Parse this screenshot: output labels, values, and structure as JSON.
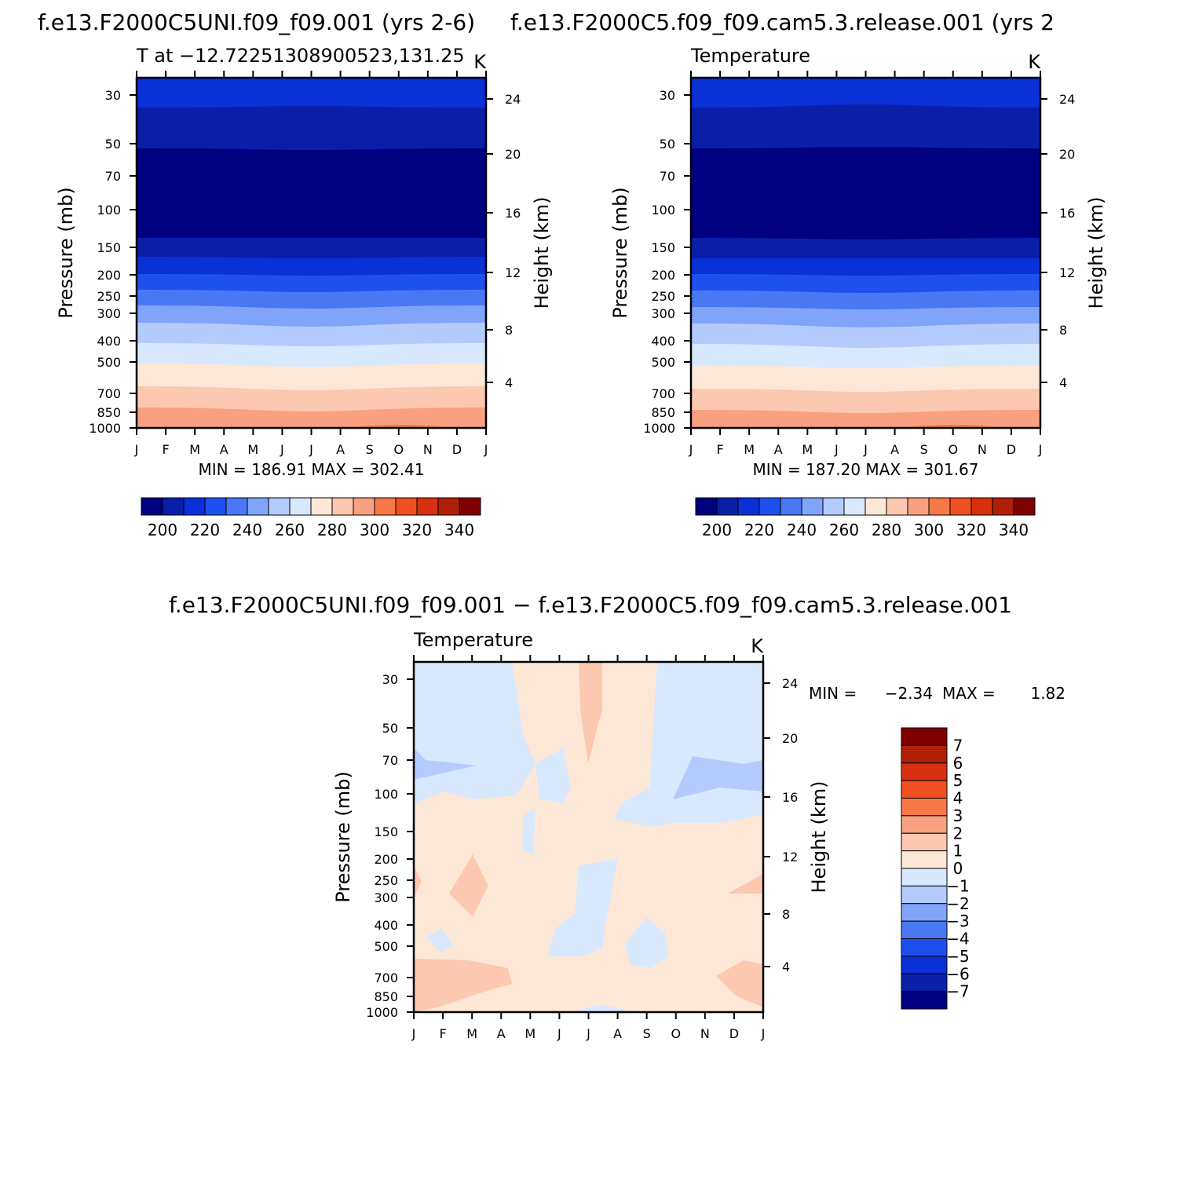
{
  "chart_data": [
    {
      "type": "heatmap",
      "title": "f.e13.F2000C5UNI.f09_f09.001 (yrs 2-6)",
      "subtitle_left": "T at −12.72251308900523,131.25",
      "subtitle_right": "K",
      "xlabel": "",
      "ylabel": "Pressure (mb)",
      "ylabel_right": "Height (km)",
      "x_ticks": [
        "J",
        "F",
        "M",
        "A",
        "M",
        "J",
        "J",
        "A",
        "S",
        "O",
        "N",
        "D",
        "J"
      ],
      "pressure_ticks": [
        "30",
        "50",
        "70",
        "100",
        "150",
        "200",
        "250",
        "300",
        "400",
        "500",
        "700",
        "850",
        "1000"
      ],
      "height_ticks": [
        "24",
        "20",
        "16",
        "12",
        "8",
        "4"
      ],
      "stats": "MIN = 186.91 MAX = 302.41",
      "colorbar_labels": [
        "200",
        "220",
        "240",
        "260",
        "280",
        "300",
        "320",
        "340"
      ],
      "colors": [
        "#000080",
        "#0a1fa8",
        "#0a30d8",
        "#1e50f0",
        "#4a78f5",
        "#80a4fa",
        "#b3cbfd",
        "#d8e8fd",
        "#fde8d8",
        "#fcc8b0",
        "#f8a080",
        "#f87848",
        "#f05020",
        "#d83010",
        "#b02008",
        "#800000"
      ]
    },
    {
      "type": "heatmap",
      "title": "f.e13.F2000C5.f09_f09.cam5.3.release.001 (yrs 2",
      "subtitle_left": "Temperature",
      "subtitle_right": "K",
      "xlabel": "",
      "ylabel": "Pressure (mb)",
      "ylabel_right": "Height (km)",
      "x_ticks": [
        "J",
        "F",
        "M",
        "A",
        "M",
        "J",
        "J",
        "A",
        "S",
        "O",
        "N",
        "D",
        "J"
      ],
      "pressure_ticks": [
        "30",
        "50",
        "70",
        "100",
        "150",
        "200",
        "250",
        "300",
        "400",
        "500",
        "700",
        "850",
        "1000"
      ],
      "height_ticks": [
        "24",
        "20",
        "16",
        "12",
        "8",
        "4"
      ],
      "stats": "MIN = 187.20 MAX = 301.67",
      "colorbar_labels": [
        "200",
        "220",
        "240",
        "260",
        "280",
        "300",
        "320",
        "340"
      ],
      "colors": [
        "#000080",
        "#0a1fa8",
        "#0a30d8",
        "#1e50f0",
        "#4a78f5",
        "#80a4fa",
        "#b3cbfd",
        "#d8e8fd",
        "#fde8d8",
        "#fcc8b0",
        "#f8a080",
        "#f87848",
        "#f05020",
        "#d83010",
        "#b02008",
        "#800000"
      ]
    },
    {
      "type": "heatmap",
      "title": "f.e13.F2000C5UNI.f09_f09.001 − f.e13.F2000C5.f09_f09.cam5.3.release.001",
      "subtitle_left": "Temperature",
      "subtitle_right": "K",
      "xlabel": "",
      "ylabel": "Pressure (mb)",
      "ylabel_right": "Height (km)",
      "x_ticks": [
        "J",
        "F",
        "M",
        "A",
        "M",
        "J",
        "J",
        "A",
        "S",
        "O",
        "N",
        "D",
        "J"
      ],
      "pressure_ticks": [
        "30",
        "50",
        "70",
        "100",
        "150",
        "200",
        "250",
        "300",
        "400",
        "500",
        "700",
        "850",
        "1000"
      ],
      "height_ticks": [
        "24",
        "20",
        "16",
        "12",
        "8",
        "4"
      ],
      "stats_min_label": "MIN =",
      "stats_min_value": "−2.34",
      "stats_max_label": "MAX =",
      "stats_max_value": "1.82",
      "colorbar_labels": [
        "7",
        "6",
        "5",
        "4",
        "3",
        "2",
        "1",
        "0",
        "−1",
        "−2",
        "−3",
        "−4",
        "−5",
        "−6",
        "−7"
      ],
      "colors_top_to_bottom": [
        "#800000",
        "#b02008",
        "#d83010",
        "#f05020",
        "#f87848",
        "#f8a080",
        "#fcc8b0",
        "#fde8d8",
        "#d8e8fd",
        "#b3cbfd",
        "#80a4fa",
        "#4a78f5",
        "#1e50f0",
        "#0a30d8",
        "#0a1fa8",
        "#000080"
      ]
    }
  ]
}
